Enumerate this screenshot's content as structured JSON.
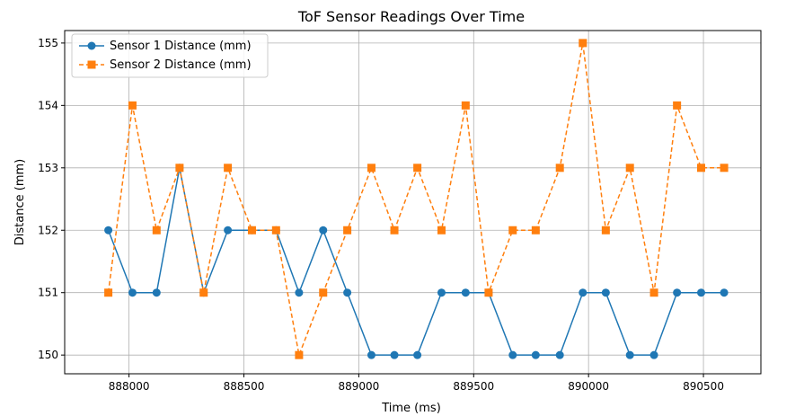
{
  "chart_data": {
    "type": "line",
    "title": "ToF Sensor Readings Over Time",
    "xlabel": "Time (ms)",
    "ylabel": "Distance (mm)",
    "xlim": [
      887720,
      890750
    ],
    "ylim": [
      149.7,
      155.2
    ],
    "xticks": [
      888000,
      888500,
      889000,
      889500,
      890000,
      890500
    ],
    "yticks": [
      150,
      151,
      152,
      153,
      154,
      155
    ],
    "grid": true,
    "legend_position": "top-left",
    "x": [
      887910,
      888015,
      888120,
      888220,
      888325,
      888430,
      888535,
      888640,
      888740,
      888845,
      888950,
      889055,
      889155,
      889255,
      889360,
      889465,
      889565,
      889670,
      889770,
      889875,
      889975,
      890075,
      890180,
      890285,
      890385,
      890490,
      890590
    ],
    "series": [
      {
        "name": "Sensor 1 Distance (mm)",
        "color": "#1f77b4",
        "style": "solid",
        "marker": "circle",
        "values": [
          152,
          151,
          151,
          153,
          151,
          152,
          152,
          152,
          151,
          152,
          151,
          150,
          150,
          150,
          151,
          151,
          151,
          150,
          150,
          150,
          151,
          151,
          150,
          150,
          151,
          151,
          151
        ]
      },
      {
        "name": "Sensor 2 Distance (mm)",
        "color": "#ff7f0e",
        "style": "dashed",
        "marker": "square",
        "values": [
          151,
          154,
          152,
          153,
          151,
          153,
          152,
          152,
          150,
          151,
          152,
          153,
          152,
          153,
          152,
          154,
          151,
          152,
          152,
          153,
          155,
          152,
          153,
          151,
          154,
          153,
          153
        ]
      }
    ]
  }
}
